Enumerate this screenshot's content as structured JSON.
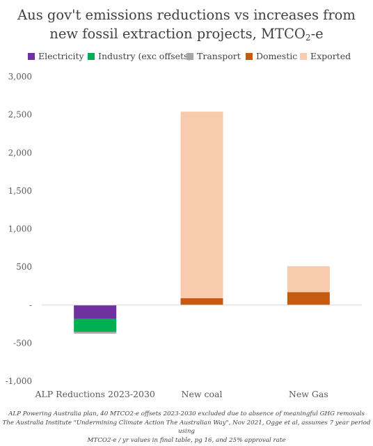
{
  "title_line1": "Aus gov't emissions reductions vs increases from",
  "title_line2_prefix": "new fossil extraction projects, MTCO",
  "title_sub": "2",
  "title_suffix": "-e",
  "colors": {
    "Electricity": "#7030a0",
    "Industry (exc offsets)": "#00b050",
    "Transport": "#a6a6a6",
    "Domestic": "#c55a11",
    "Exported": "#f8cbad"
  },
  "chart_data": {
    "type": "bar",
    "stacked": true,
    "categories": [
      "ALP Reductions 2023-2030",
      "New coal",
      "New Gas"
    ],
    "series": [
      {
        "name": "Electricity",
        "values": [
          -180,
          0,
          0
        ]
      },
      {
        "name": "Industry (exc offsets)",
        "values": [
          -170,
          0,
          0
        ]
      },
      {
        "name": "Transport",
        "values": [
          -25,
          0,
          0
        ]
      },
      {
        "name": "Domestic",
        "values": [
          0,
          90,
          170
        ]
      },
      {
        "name": "Exported",
        "values": [
          0,
          2450,
          340
        ]
      }
    ],
    "ylim": [
      -1000,
      3000
    ],
    "yticks": [
      -1000,
      -500,
      0,
      500,
      1000,
      1500,
      2000,
      2500,
      3000
    ],
    "ytick_labels": [
      "-1,000",
      "-500",
      "-",
      "500",
      "1,000",
      "1,500",
      "2,000",
      "2,500",
      "3,000"
    ],
    "grid": false,
    "legend": "top"
  },
  "source_lines": [
    "ALP Powering Australia plan, 40 MTCO2-e offsets 2023-2030 excluded due to absence of meaningful GHG removals",
    "The Australia Institute \"Undermining Climate Action The Australian Way\", Nov 2021, Ogge et al, assumes 7 year period using",
    "MTCO2-e / yr values in final table, pg 16, and 25% approval rate"
  ]
}
